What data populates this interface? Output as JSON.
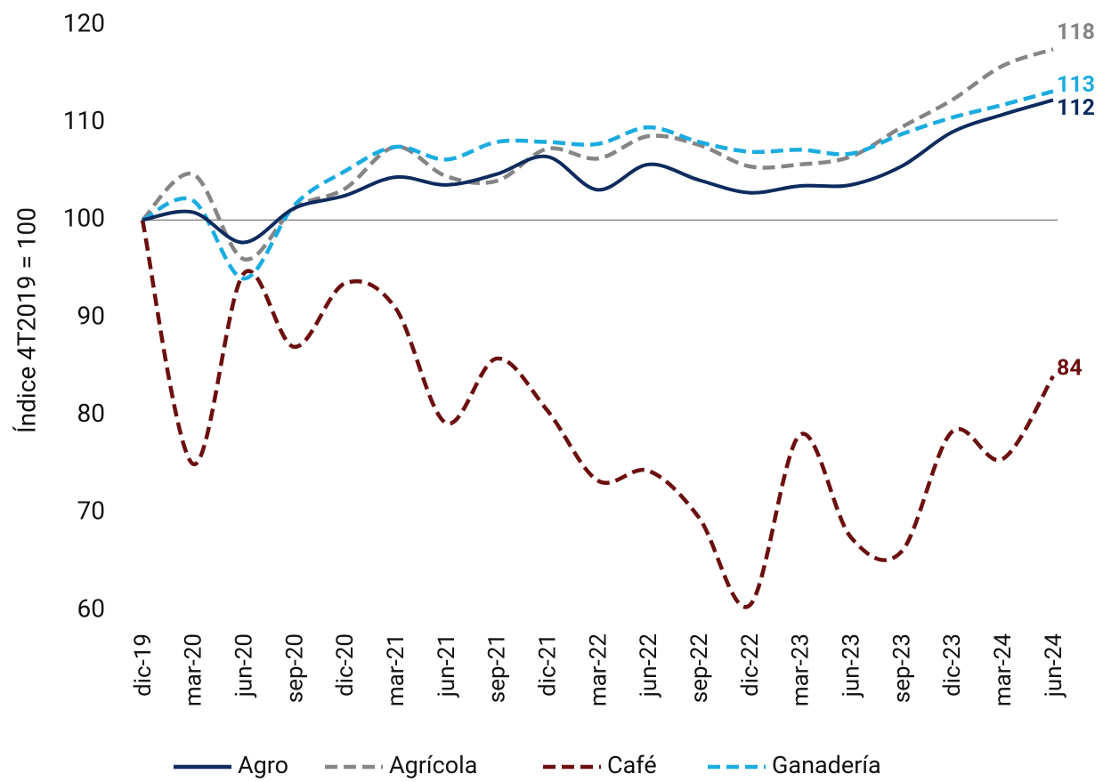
{
  "chart_data": {
    "type": "line",
    "y_label": "Índice 4T2019 = 100",
    "categories": [
      "dic-19",
      "mar-20",
      "jun-20",
      "sep-20",
      "dic-20",
      "mar-21",
      "jun-21",
      "sep-21",
      "dic-21",
      "mar-22",
      "jun-22",
      "sep-22",
      "dic-22",
      "mar-23",
      "jun-23",
      "sep-23",
      "dic-23",
      "mar-24",
      "jun-24"
    ],
    "series": [
      {
        "name": "Agro",
        "color": "#0d2b5e",
        "dash": false,
        "end_label": "112",
        "values": [
          100,
          100.8,
          97.7,
          101.2,
          102.5,
          104.4,
          103.6,
          104.7,
          106.5,
          103.1,
          105.7,
          104.1,
          102.8,
          103.5,
          103.6,
          105.5,
          109,
          110.8,
          112.3
        ]
      },
      {
        "name": "Agrícola",
        "color": "#858585",
        "dash": true,
        "end_label": "118",
        "values": [
          100,
          104.7,
          96,
          101.2,
          103.2,
          107.5,
          104.5,
          104,
          107.3,
          106.3,
          108.6,
          107.7,
          105.5,
          105.7,
          106.5,
          109.5,
          112.3,
          115.8,
          117.5
        ]
      },
      {
        "name": "Café",
        "color": "#6b0f0f",
        "dash": true,
        "end_label": "84",
        "values": [
          100,
          75,
          94.5,
          87,
          93.5,
          91,
          79.2,
          85.8,
          80.5,
          73.3,
          74.3,
          69.5,
          60.5,
          78,
          67.5,
          66,
          78.3,
          75.5,
          84
        ]
      },
      {
        "name": "Ganadería",
        "color": "#1aace0",
        "dash": true,
        "end_label": "113",
        "values": [
          100,
          102,
          94,
          101.5,
          105,
          107.5,
          106.2,
          108,
          108,
          107.8,
          109.5,
          108,
          107,
          107.2,
          106.8,
          108.8,
          110.5,
          111.8,
          113.2
        ]
      }
    ],
    "ylim": [
      60,
      120
    ],
    "yticks": [
      60,
      70,
      80,
      90,
      100,
      110,
      120
    ],
    "reference_line": 100,
    "grid": false
  }
}
